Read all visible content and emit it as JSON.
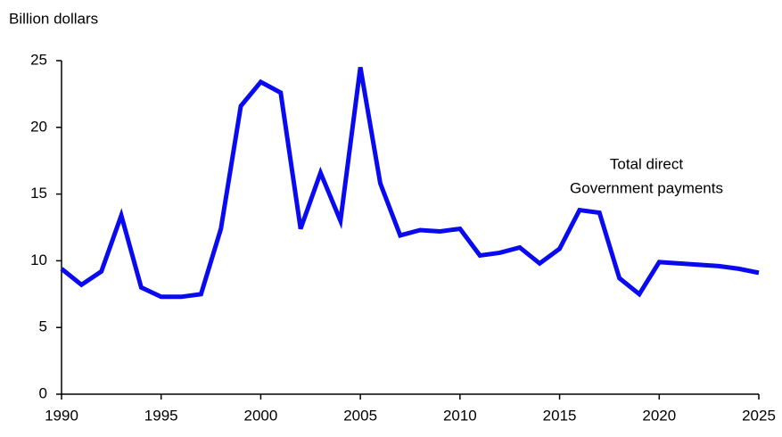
{
  "chart_data": {
    "type": "line",
    "y_axis_label": "Billion dollars",
    "annotation": [
      "Total direct",
      "Government payments"
    ],
    "x": [
      1990,
      1991,
      1992,
      1993,
      1994,
      1995,
      1996,
      1997,
      1998,
      1999,
      2000,
      2001,
      2002,
      2003,
      2004,
      2005,
      2006,
      2007,
      2008,
      2009,
      2010,
      2011,
      2012,
      2013,
      2014,
      2015,
      2016,
      2017,
      2018,
      2019,
      2020,
      2021,
      2022,
      2023,
      2024,
      2025
    ],
    "series": [
      {
        "name": "Total direct Government payments",
        "color": "#0a0af0",
        "values": [
          9.4,
          8.2,
          9.2,
          13.4,
          8.0,
          7.3,
          7.3,
          7.5,
          12.4,
          21.6,
          23.4,
          22.6,
          12.4,
          16.6,
          13.0,
          24.5,
          15.8,
          11.9,
          12.3,
          12.2,
          12.4,
          10.4,
          10.6,
          11.0,
          9.8,
          10.9,
          13.8,
          13.6,
          8.7,
          7.5,
          9.9,
          9.8,
          9.7,
          9.6,
          9.4,
          9.1
        ]
      }
    ],
    "xlim": [
      1990,
      2025
    ],
    "xticks": [
      1990,
      1995,
      2000,
      2005,
      2010,
      2015,
      2020,
      2025
    ],
    "ylim": [
      0,
      25
    ],
    "yticks": [
      0,
      5,
      10,
      15,
      20,
      25
    ],
    "grid": false
  }
}
